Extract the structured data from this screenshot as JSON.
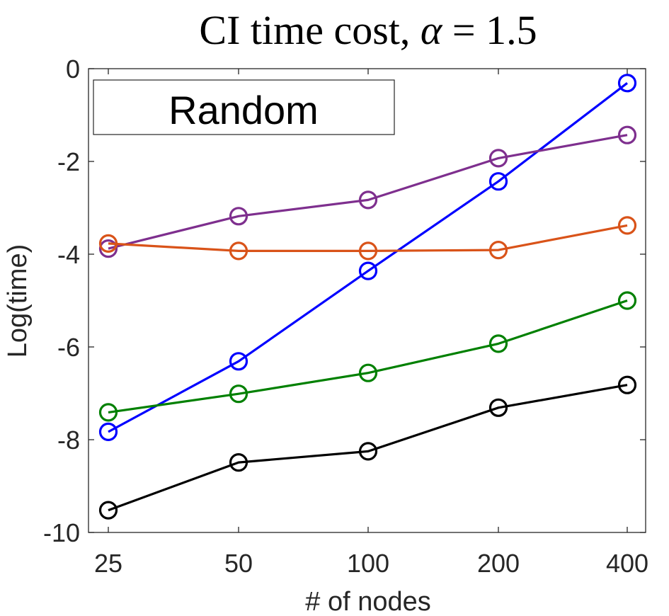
{
  "chart_data": {
    "type": "line",
    "title": "CI time cost, ",
    "title_symbol": "α",
    "title_suffix": " = 1.5",
    "xlabel": "# of nodes",
    "ylabel": "Log(time)",
    "categories": [
      "25",
      "50",
      "100",
      "200",
      "400"
    ],
    "ylim": [
      -10,
      0
    ],
    "yticks": [
      0,
      -2,
      -4,
      -6,
      -8,
      -10
    ],
    "ytick_labels": [
      "0",
      "-2",
      "-4",
      "-6",
      "-8",
      "-10"
    ],
    "legend": {
      "label": "Random",
      "placement": "top-left"
    },
    "series": [
      {
        "name": "blue",
        "color": "#0000ff",
        "values": [
          -7.83,
          -6.31,
          -4.36,
          -2.43,
          -0.31
        ]
      },
      {
        "name": "purple",
        "color": "#7e2f8e",
        "values": [
          -3.88,
          -3.18,
          -2.83,
          -1.93,
          -1.43
        ]
      },
      {
        "name": "orange",
        "color": "#d95319",
        "values": [
          -3.77,
          -3.93,
          -3.93,
          -3.91,
          -3.38
        ]
      },
      {
        "name": "green",
        "color": "#008000",
        "values": [
          -7.41,
          -7.01,
          -6.56,
          -5.93,
          -5.0
        ]
      },
      {
        "name": "black",
        "color": "#000000",
        "values": [
          -9.52,
          -8.49,
          -8.25,
          -7.31,
          -6.82
        ]
      }
    ]
  }
}
